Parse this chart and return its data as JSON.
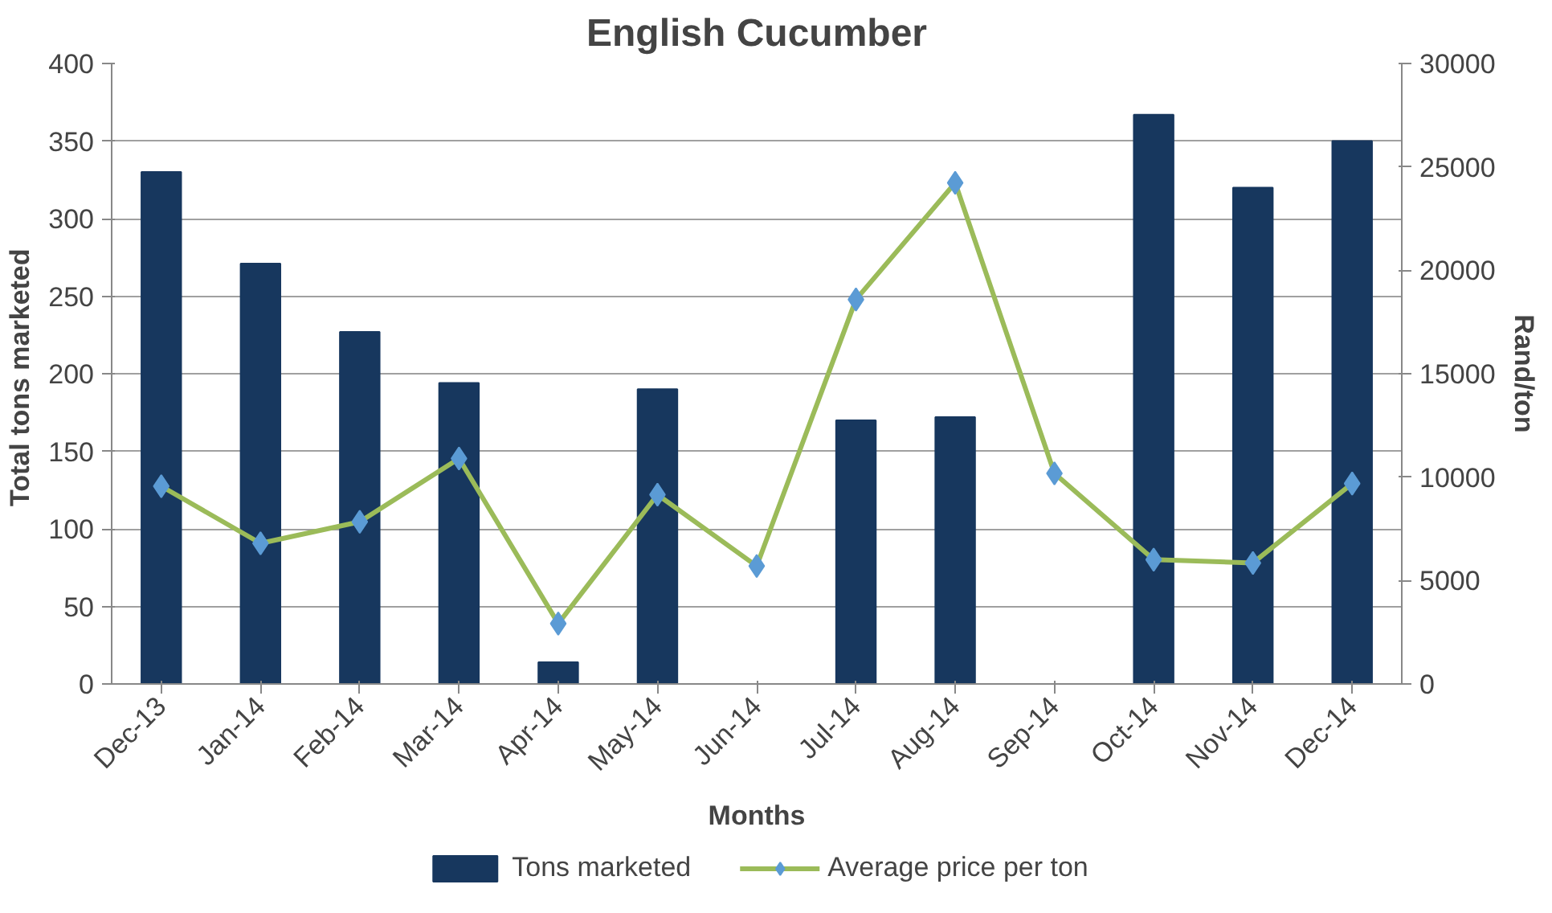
{
  "chart_data": {
    "type": "bar",
    "title": "English Cucumber",
    "xlabel": "Months",
    "ylabel": "Total  tons marketed",
    "y2label": "Rand/ton",
    "categories": [
      "Dec-13",
      "Jan-14",
      "Feb-14",
      "Mar-14",
      "Apr-14",
      "May-14",
      "Jun-14",
      "Jul-14",
      "Aug-14",
      "Sep-14",
      "Oct-14",
      "Nov-14",
      "Dec-14"
    ],
    "series": [
      {
        "name": "Tons marketed",
        "color": "#17375e",
        "values": [
          330,
          271,
          227,
          194,
          14,
          190,
          0,
          170,
          172,
          0,
          367,
          320,
          350
        ]
      },
      {
        "name": "Average price per ton",
        "type": "line",
        "axis": "y2",
        "color": "#9bbb59",
        "marker": "diamond",
        "values": [
          9560,
          6800,
          7840,
          10900,
          2920,
          9150,
          5700,
          18590,
          24230,
          10180,
          6010,
          5850,
          9690
        ]
      }
    ],
    "ylim": [
      0,
      400
    ],
    "yticks": [
      0,
      50,
      100,
      150,
      200,
      250,
      300,
      350,
      400
    ],
    "y2lim": [
      0,
      30000
    ],
    "y2ticks": [
      0,
      5000,
      10000,
      15000,
      20000,
      25000,
      30000
    ],
    "grid": "y",
    "legend": "bottom"
  }
}
